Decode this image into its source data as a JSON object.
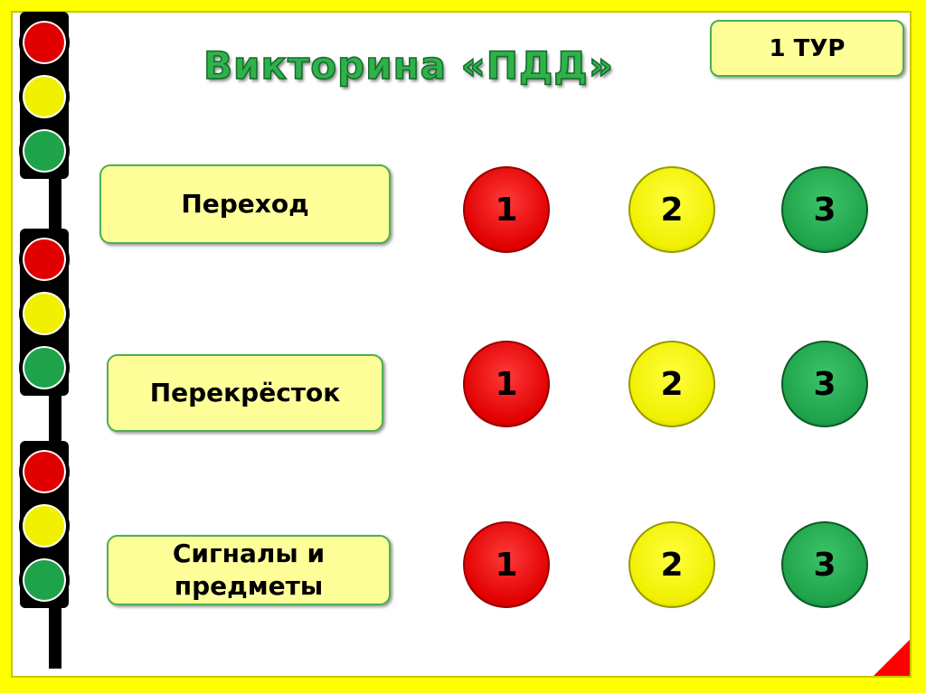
{
  "title": "Викторина «ПДД»",
  "tour_label": "1 ТУР",
  "colors": {
    "red": "#e00000",
    "yellow": "#f0f000",
    "green": "#1ea24a",
    "frame": "#ffff00",
    "box": "#ffff99"
  },
  "rows": [
    {
      "category": "Переход",
      "buttons": [
        "1",
        "2",
        "3"
      ]
    },
    {
      "category": "Перекрёсток",
      "buttons": [
        "1",
        "2",
        "3"
      ]
    },
    {
      "category": "Сигналы и предметы",
      "buttons": [
        "1",
        "2",
        "3"
      ]
    }
  ]
}
